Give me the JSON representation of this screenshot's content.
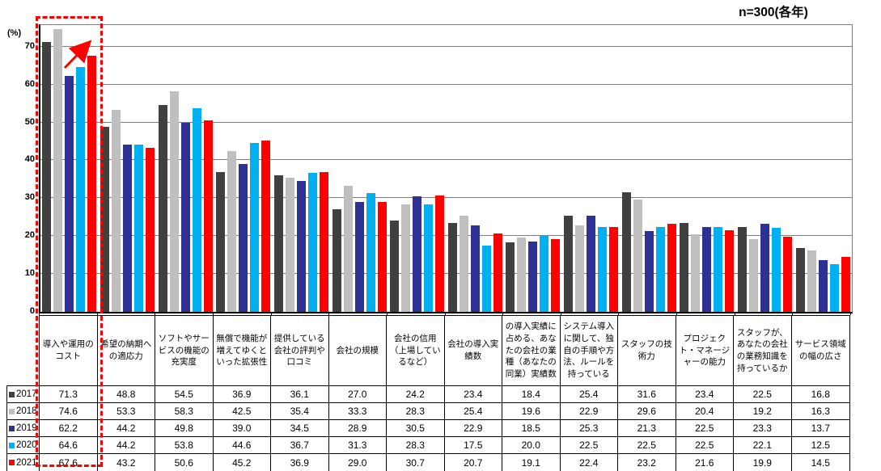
{
  "header": {
    "sample_label": "n=300(各年)"
  },
  "axis": {
    "unit_label": "(%)"
  },
  "chart_data": {
    "type": "bar",
    "title": "n=300(各年)",
    "xlabel": "",
    "ylabel": "(%)",
    "ylim": [
      0,
      75.7
    ],
    "yticks": [
      0,
      10,
      20,
      30,
      40,
      50,
      60,
      70
    ],
    "grid": true,
    "legend_position": "table-left-column",
    "categories": [
      "導入や運用のコスト",
      "希望の納期への適応力",
      "ソフトやサービスの機能の充実度",
      "無償で機能が増えてゆくといった拡張性",
      "提供している会社の評判や口コミ",
      "会社の規模",
      "会社の信用（上場しているなど）",
      "会社の導入実績数",
      "の導入実績に占める、あなたの会社の業種（あなたの同業）実績数",
      "システム導入に関して、独自の手順や方法、ルールを持っている",
      "スタッフの技術力",
      "プロジェクト・マネージャーの能力",
      "スタッフが、あなたの会社の業務知識を持っているか",
      "サービス領域の幅の広さ"
    ],
    "series": [
      {
        "name": "2017",
        "color": "#404040",
        "values": [
          71.3,
          48.8,
          54.5,
          36.9,
          36.1,
          27.0,
          24.2,
          23.4,
          18.4,
          25.4,
          31.6,
          23.4,
          22.5,
          16.8
        ]
      },
      {
        "name": "2018",
        "color": "#bfbfbf",
        "values": [
          74.6,
          53.3,
          58.3,
          42.5,
          35.4,
          33.3,
          28.3,
          25.4,
          19.6,
          22.9,
          29.6,
          20.4,
          19.2,
          16.3
        ]
      },
      {
        "name": "2019",
        "color": "#2e3192",
        "values": [
          62.2,
          44.2,
          49.8,
          39.0,
          34.5,
          28.9,
          30.5,
          22.9,
          18.5,
          25.3,
          21.3,
          22.5,
          23.3,
          13.7
        ]
      },
      {
        "name": "2020",
        "color": "#00b0f0",
        "values": [
          64.6,
          44.2,
          53.8,
          44.6,
          36.7,
          31.3,
          28.3,
          17.5,
          20.0,
          22.5,
          22.5,
          22.5,
          22.1,
          12.5
        ]
      },
      {
        "name": "2021",
        "color": "#ff0000",
        "values": [
          67.6,
          43.2,
          50.6,
          45.2,
          36.9,
          29.0,
          30.7,
          20.7,
          19.1,
          22.4,
          23.2,
          21.6,
          19.9,
          14.5
        ]
      }
    ],
    "annotations": {
      "highlight": "red dashed rectangle around first category (chart column and table column)",
      "trend_arrow": "red arrow pointing up-right over 2019-2021 bars of first category",
      "highlight_color": "#ff0000"
    }
  }
}
